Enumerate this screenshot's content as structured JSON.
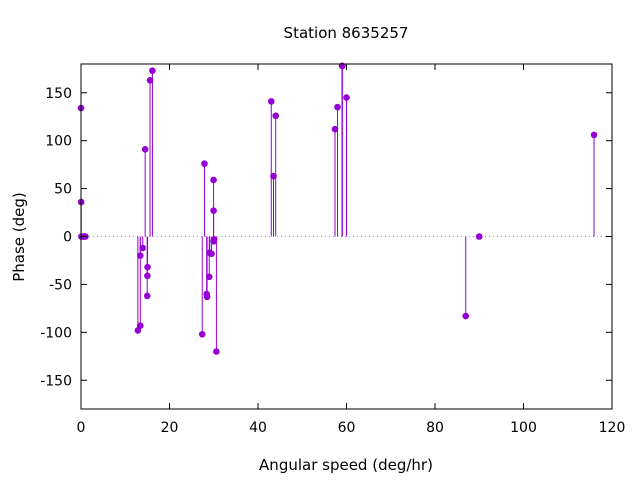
{
  "chart_data": {
    "type": "scatter",
    "style": "impulses-with-points",
    "title": "Station 8635257",
    "xlabel": "Angular speed (deg/hr)",
    "ylabel": "Phase (deg)",
    "xlim": [
      0,
      120
    ],
    "ylim": [
      -180,
      180
    ],
    "xticks": [
      0,
      20,
      40,
      60,
      80,
      100,
      120
    ],
    "yticks": [
      -150,
      -100,
      -50,
      0,
      50,
      100,
      150
    ],
    "zero_line": "dotted",
    "grid": false,
    "legend": "none",
    "color": "#9400d3",
    "points": [
      {
        "x": 0.0,
        "y": 134
      },
      {
        "x": 0.04,
        "y": 36
      },
      {
        "x": 0.08,
        "y": 0
      },
      {
        "x": 0.5,
        "y": 0
      },
      {
        "x": 0.6,
        "y": 0
      },
      {
        "x": 0.8,
        "y": 0
      },
      {
        "x": 1.0,
        "y": 0
      },
      {
        "x": 12.85,
        "y": -98
      },
      {
        "x": 13.4,
        "y": -93
      },
      {
        "x": 13.4,
        "y": -20
      },
      {
        "x": 13.94,
        "y": -12
      },
      {
        "x": 14.5,
        "y": 91
      },
      {
        "x": 14.96,
        "y": -62
      },
      {
        "x": 15.0,
        "y": -41
      },
      {
        "x": 15.04,
        "y": -32
      },
      {
        "x": 15.6,
        "y": 163
      },
      {
        "x": 16.14,
        "y": 173
      },
      {
        "x": 27.4,
        "y": -102
      },
      {
        "x": 27.9,
        "y": 76
      },
      {
        "x": 28.4,
        "y": -60
      },
      {
        "x": 28.5,
        "y": -63
      },
      {
        "x": 28.98,
        "y": -42
      },
      {
        "x": 29.1,
        "y": -17
      },
      {
        "x": 29.5,
        "y": -18
      },
      {
        "x": 29.96,
        "y": 59
      },
      {
        "x": 29.96,
        "y": 27
      },
      {
        "x": 30.0,
        "y": -5
      },
      {
        "x": 30.1,
        "y": -3
      },
      {
        "x": 30.6,
        "y": -120
      },
      {
        "x": 43.0,
        "y": 141
      },
      {
        "x": 43.5,
        "y": 63
      },
      {
        "x": 44.0,
        "y": 126
      },
      {
        "x": 57.4,
        "y": 112
      },
      {
        "x": 57.97,
        "y": 135
      },
      {
        "x": 58.98,
        "y": 178
      },
      {
        "x": 59.07,
        "y": 178
      },
      {
        "x": 60.0,
        "y": 145
      },
      {
        "x": 86.95,
        "y": -83
      },
      {
        "x": 90.0,
        "y": 0
      },
      {
        "x": 115.94,
        "y": 106
      }
    ]
  }
}
